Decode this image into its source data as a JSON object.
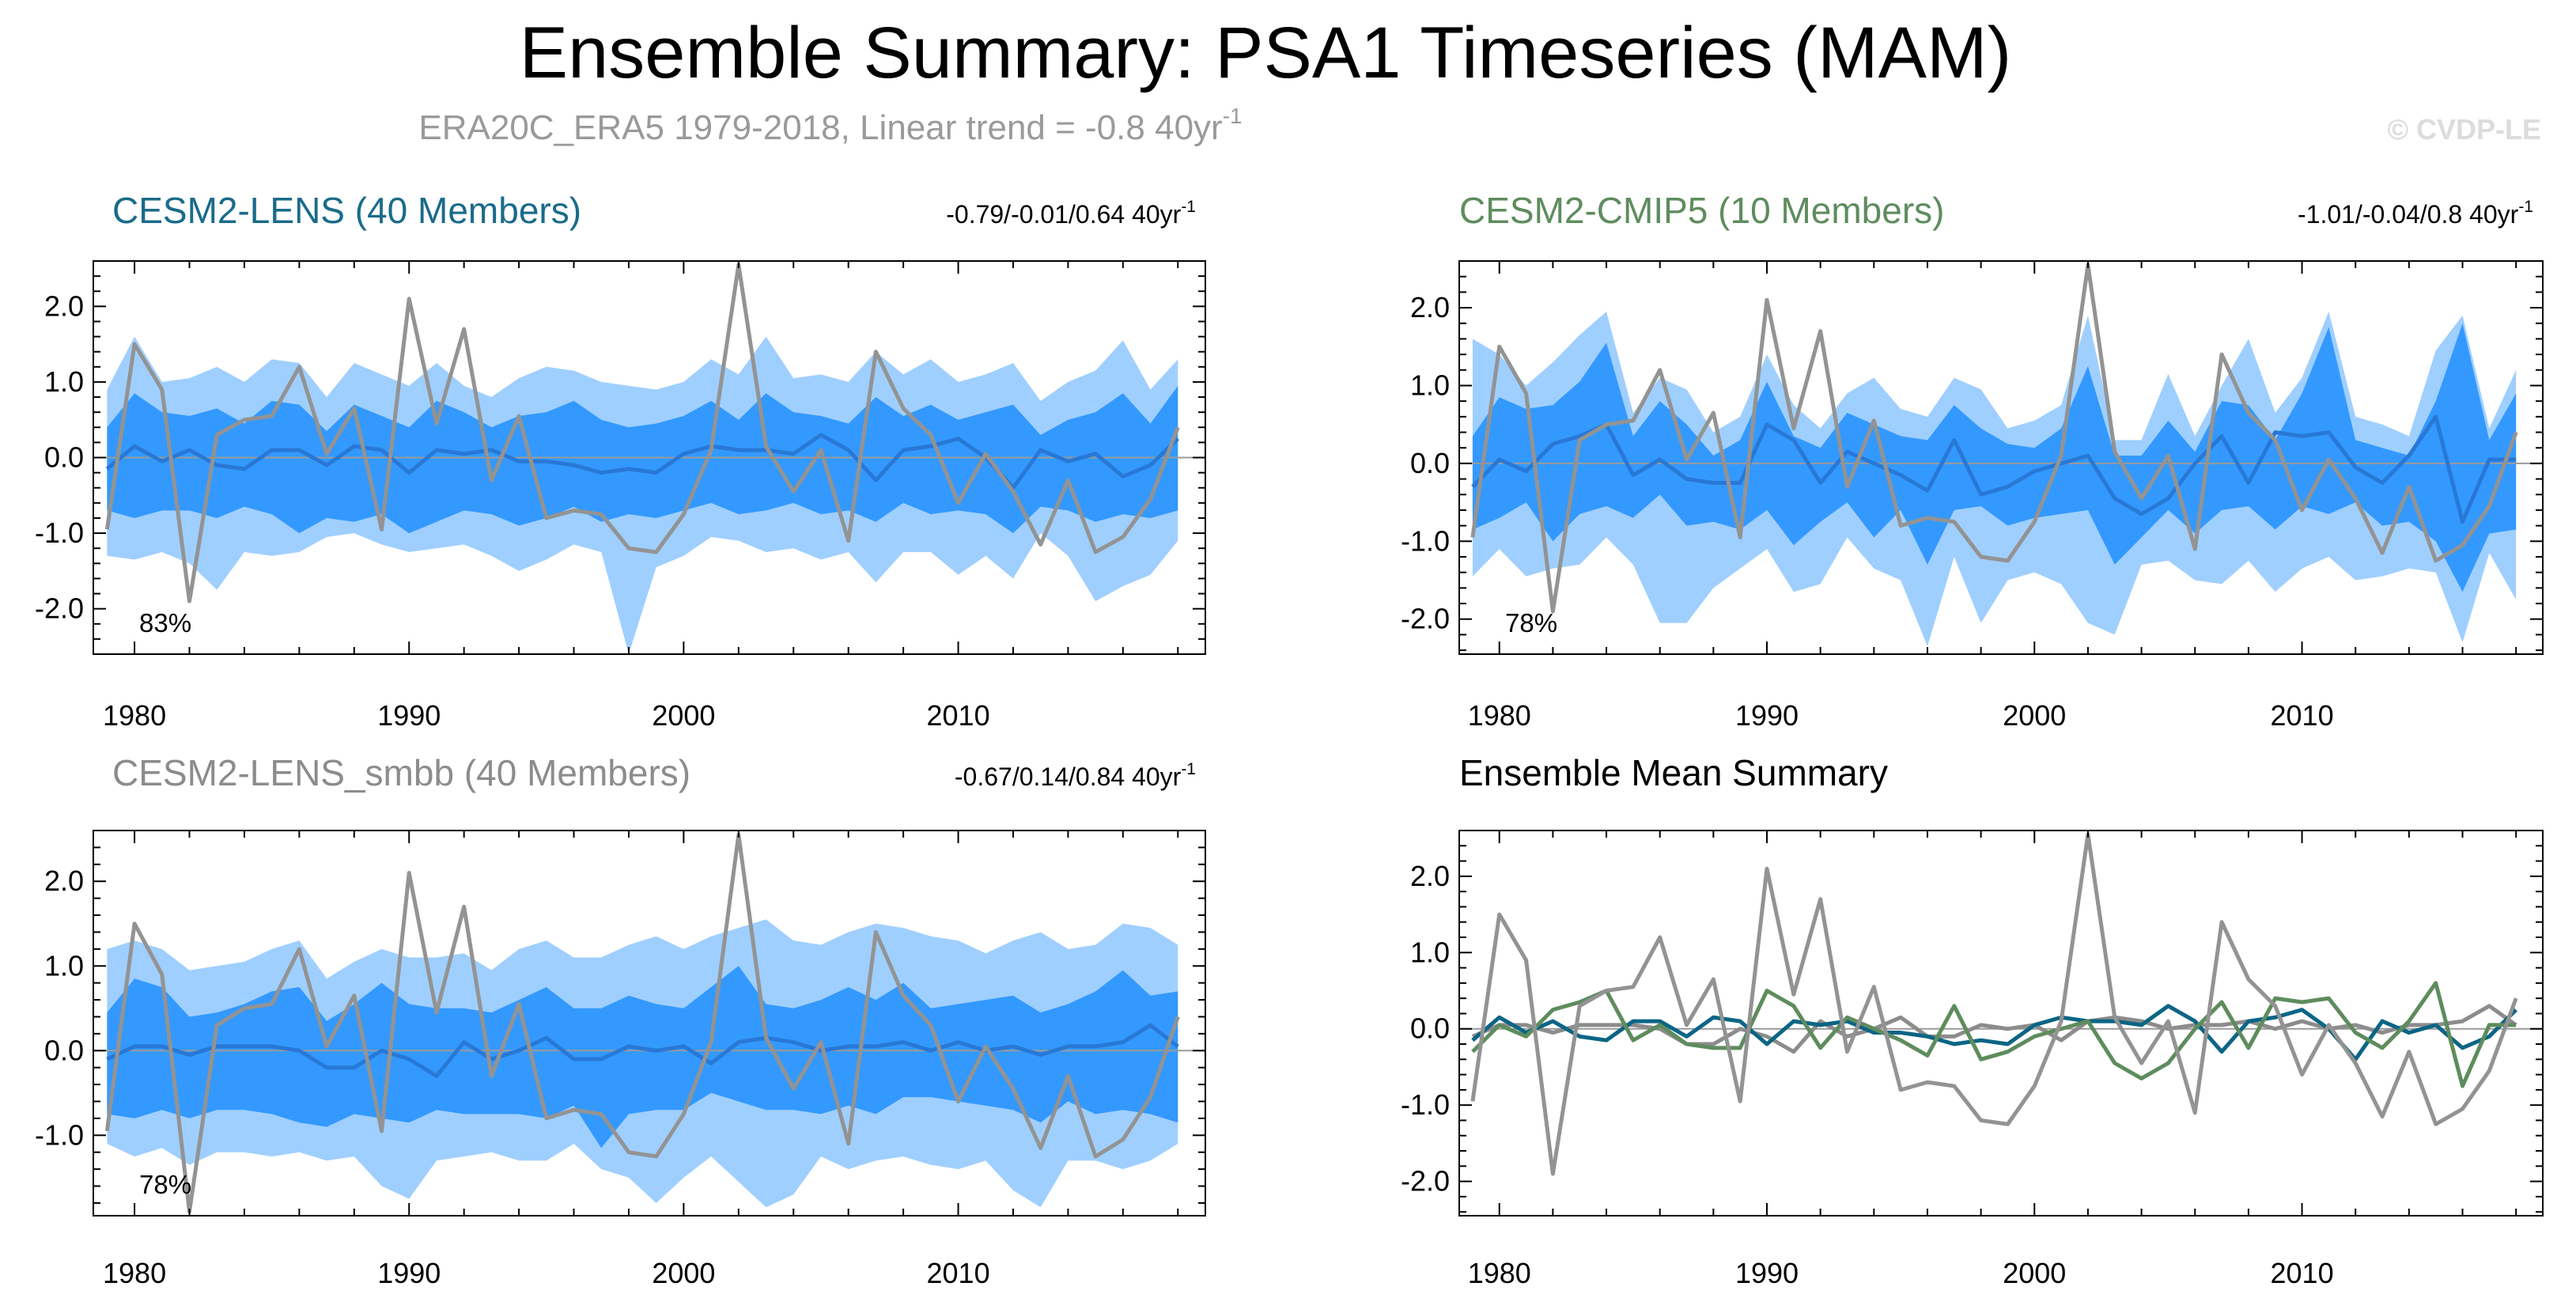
{
  "title": "Ensemble Summary: PSA1 Timeseries (MAM)",
  "subtitle": "ERA20C_ERA5 1979-2018, Linear trend = -0.8 40yr",
  "subtitle_superscript": "-1",
  "watermark": "© CVDP-LE",
  "colors": {
    "inner_band": "#3399ff",
    "outer_band": "#9fcfff",
    "ensemble_median": "#2878d6",
    "observations": "#939393",
    "cesm2_lens": "#0b6584",
    "cesm2_cmip5": "#5e8c5e",
    "cesm2_lens_smbb": "#8c8c8c"
  },
  "chart_data": [
    {
      "type": "line",
      "title": "CESM2-LENS (40 Members)",
      "title_color": "#1a6b8a",
      "trend_text": "-0.79/-0.01/0.64 40yr",
      "trend_superscript": "-1",
      "percent_label": "83%",
      "xlim": [
        1978.5,
        2019
      ],
      "ylim": [
        -2.6,
        2.6
      ],
      "x_ticks": [
        1980,
        1990,
        2000,
        2010
      ],
      "x_tick_labels": [
        "1980",
        "1990",
        "2000",
        "2010"
      ],
      "y_ticks": [
        -2.0,
        -1.0,
        0.0,
        1.0,
        2.0
      ],
      "y_tick_labels": [
        "-2.0",
        "-1.0",
        "0.0",
        "1.0",
        "2.0"
      ],
      "start_year": 1979,
      "bands": {
        "outer_upper": [
          0.9,
          1.6,
          1.0,
          1.05,
          1.2,
          1.0,
          1.3,
          1.25,
          0.8,
          1.25,
          1.1,
          0.95,
          1.25,
          0.95,
          0.8,
          1.05,
          1.2,
          1.15,
          1.0,
          0.95,
          0.9,
          1.0,
          1.3,
          1.1,
          1.6,
          1.05,
          1.1,
          1.0,
          1.4,
          1.1,
          1.3,
          1.0,
          1.1,
          1.25,
          0.75,
          1.0,
          1.15,
          1.55,
          0.9,
          1.3
        ],
        "inner_upper": [
          0.4,
          0.85,
          0.6,
          0.55,
          0.65,
          0.45,
          0.75,
          0.7,
          0.35,
          0.7,
          0.55,
          0.4,
          0.75,
          0.6,
          0.4,
          0.55,
          0.6,
          0.75,
          0.5,
          0.4,
          0.45,
          0.55,
          0.75,
          0.5,
          0.85,
          0.6,
          0.55,
          0.45,
          0.8,
          0.55,
          0.7,
          0.5,
          0.6,
          0.7,
          0.3,
          0.5,
          0.6,
          0.85,
          0.45,
          0.95
        ],
        "inner_lower": [
          -0.7,
          -0.8,
          -0.7,
          -0.7,
          -0.8,
          -0.65,
          -0.75,
          -1.0,
          -0.8,
          -0.85,
          -0.75,
          -1.0,
          -0.85,
          -0.7,
          -0.75,
          -0.9,
          -0.8,
          -0.65,
          -0.85,
          -0.75,
          -0.8,
          -0.7,
          -0.6,
          -0.75,
          -0.7,
          -0.6,
          -0.75,
          -0.7,
          -0.85,
          -0.6,
          -0.75,
          -0.7,
          -0.75,
          -1.0,
          -0.65,
          -0.7,
          -0.85,
          -0.75,
          -0.8,
          -0.7
        ],
        "outer_lower": [
          -1.3,
          -1.35,
          -1.25,
          -1.4,
          -1.75,
          -1.25,
          -1.3,
          -1.25,
          -1.05,
          -1.0,
          -1.15,
          -1.25,
          -1.2,
          -1.15,
          -1.3,
          -1.5,
          -1.35,
          -1.15,
          -1.25,
          -2.6,
          -1.45,
          -1.3,
          -1.05,
          -1.1,
          -1.25,
          -1.2,
          -1.35,
          -1.25,
          -1.65,
          -1.25,
          -1.25,
          -1.55,
          -1.3,
          -1.6,
          -1.0,
          -1.3,
          -1.9,
          -1.7,
          -1.55,
          -1.1
        ]
      },
      "ensemble_median": [
        -0.15,
        0.15,
        -0.05,
        0.1,
        -0.1,
        -0.15,
        0.1,
        0.1,
        -0.1,
        0.15,
        0.1,
        -0.2,
        0.1,
        0.05,
        0.1,
        -0.05,
        -0.05,
        -0.1,
        -0.2,
        -0.15,
        -0.2,
        0.05,
        0.15,
        0.1,
        0.1,
        0.05,
        0.3,
        0.1,
        -0.3,
        0.1,
        0.15,
        0.25,
        0.0,
        -0.4,
        0.1,
        -0.05,
        0.05,
        -0.25,
        -0.1,
        0.25
      ],
      "observations": [
        -0.95,
        1.5,
        0.9,
        -1.9,
        0.3,
        0.5,
        0.55,
        1.2,
        0.05,
        0.65,
        -0.95,
        2.1,
        0.45,
        1.7,
        -0.3,
        0.55,
        -0.8,
        -0.7,
        -0.75,
        -1.2,
        -1.25,
        -0.75,
        0.1,
        2.55,
        0.15,
        -0.45,
        0.1,
        -1.1,
        1.4,
        0.65,
        0.3,
        -0.6,
        0.05,
        -0.45,
        -1.15,
        -0.3,
        -1.25,
        -1.05,
        -0.55,
        0.4
      ]
    },
    {
      "type": "line",
      "title": "CESM2-CMIP5 (10 Members)",
      "title_color": "#5e8c5e",
      "trend_text": "-1.01/-0.04/0.8 40yr",
      "trend_superscript": "-1",
      "percent_label": "78%",
      "xlim": [
        1978.5,
        2019
      ],
      "ylim": [
        -2.45,
        2.6
      ],
      "x_ticks": [
        1980,
        1990,
        2000,
        2010
      ],
      "x_tick_labels": [
        "1980",
        "1990",
        "2000",
        "2010"
      ],
      "y_ticks": [
        -2.0,
        -1.0,
        0.0,
        1.0,
        2.0
      ],
      "y_tick_labels": [
        "-2.0",
        "-1.0",
        "0.0",
        "1.0",
        "2.0"
      ],
      "start_year": 1979,
      "bands": {
        "outer_upper": [
          1.6,
          1.4,
          1.0,
          1.3,
          1.65,
          1.95,
          0.65,
          1.1,
          0.95,
          0.4,
          0.6,
          1.4,
          0.75,
          0.45,
          0.9,
          1.1,
          0.7,
          0.6,
          1.1,
          0.95,
          0.45,
          0.55,
          0.75,
          1.9,
          0.3,
          0.3,
          1.15,
          0.35,
          1.0,
          1.6,
          0.65,
          1.1,
          1.95,
          0.6,
          0.5,
          0.35,
          1.45,
          1.9,
          0.45,
          1.2
        ],
        "inner_upper": [
          0.35,
          0.85,
          0.7,
          0.75,
          1.05,
          1.55,
          0.35,
          0.8,
          0.5,
          0.1,
          0.3,
          1.05,
          0.35,
          0.2,
          0.65,
          0.5,
          0.35,
          0.3,
          0.75,
          0.45,
          0.25,
          0.2,
          0.45,
          1.25,
          0.1,
          0.1,
          0.55,
          0.15,
          0.8,
          0.75,
          0.3,
          0.9,
          1.75,
          0.3,
          0.2,
          0.1,
          0.8,
          1.8,
          0.3,
          0.9
        ],
        "inner_lower": [
          -0.85,
          -0.7,
          -0.5,
          -1.0,
          -0.65,
          -0.55,
          -0.7,
          -0.4,
          -0.8,
          -0.75,
          -0.85,
          -0.6,
          -1.05,
          -0.75,
          -0.5,
          -0.95,
          -0.6,
          -1.3,
          -0.6,
          -0.55,
          -0.8,
          -0.7,
          -0.65,
          -0.6,
          -1.3,
          -0.95,
          -0.6,
          -0.9,
          -0.6,
          -0.55,
          -0.85,
          -0.55,
          -0.65,
          -0.5,
          -0.8,
          -0.75,
          -1.0,
          -1.65,
          -0.9,
          -0.85
        ],
        "outer_lower": [
          -1.45,
          -1.1,
          -1.45,
          -1.35,
          -1.3,
          -0.95,
          -1.3,
          -2.05,
          -2.05,
          -1.6,
          -1.35,
          -1.1,
          -1.65,
          -1.55,
          -0.95,
          -1.35,
          -1.5,
          -2.35,
          -1.2,
          -2.05,
          -1.5,
          -1.4,
          -1.55,
          -2.05,
          -2.2,
          -1.3,
          -1.25,
          -1.5,
          -1.55,
          -1.25,
          -1.65,
          -1.35,
          -1.2,
          -1.5,
          -1.45,
          -1.35,
          -1.4,
          -2.3,
          -1.15,
          -1.75
        ]
      },
      "ensemble_median": [
        -0.3,
        0.05,
        -0.1,
        0.25,
        0.35,
        0.5,
        -0.15,
        0.05,
        -0.2,
        -0.25,
        -0.25,
        0.5,
        0.3,
        -0.25,
        0.15,
        0.0,
        -0.15,
        -0.35,
        0.3,
        -0.4,
        -0.3,
        -0.1,
        0.0,
        0.1,
        -0.45,
        -0.65,
        -0.45,
        0.0,
        0.35,
        -0.25,
        0.4,
        0.35,
        0.4,
        -0.05,
        -0.25,
        0.1,
        0.6,
        -0.75,
        0.05,
        0.05
      ],
      "observations": [
        -0.95,
        1.5,
        0.9,
        -1.9,
        0.3,
        0.5,
        0.55,
        1.2,
        0.05,
        0.65,
        -0.95,
        2.1,
        0.45,
        1.7,
        -0.3,
        0.55,
        -0.8,
        -0.7,
        -0.75,
        -1.2,
        -1.25,
        -0.75,
        0.1,
        2.55,
        0.15,
        -0.45,
        0.1,
        -1.1,
        1.4,
        0.65,
        0.3,
        -0.6,
        0.05,
        -0.45,
        -1.15,
        -0.3,
        -1.25,
        -1.05,
        -0.55,
        0.4
      ]
    },
    {
      "type": "line",
      "title": "CESM2-LENS_smbb (40 Members)",
      "title_color": "#8c8c8c",
      "trend_text": "-0.67/0.14/0.84 40yr",
      "trend_superscript": "-1",
      "percent_label": "78%",
      "xlim": [
        1978.5,
        2019
      ],
      "ylim": [
        -1.95,
        2.6
      ],
      "x_ticks": [
        1980,
        1990,
        2000,
        2010
      ],
      "x_tick_labels": [
        "1980",
        "1990",
        "2000",
        "2010"
      ],
      "y_ticks": [
        -1.0,
        0.0,
        1.0,
        2.0
      ],
      "y_tick_labels": [
        "-1.0",
        "0.0",
        "1.0",
        "2.0"
      ],
      "start_year": 1979,
      "bands": {
        "outer_upper": [
          1.2,
          1.3,
          1.2,
          0.95,
          1.0,
          1.05,
          1.2,
          1.3,
          0.85,
          1.05,
          1.2,
          1.1,
          1.1,
          1.15,
          0.95,
          1.2,
          1.3,
          1.1,
          1.1,
          1.25,
          1.35,
          1.2,
          1.35,
          1.45,
          1.55,
          1.3,
          1.25,
          1.4,
          1.5,
          1.45,
          1.35,
          1.3,
          1.15,
          1.3,
          1.4,
          1.2,
          1.25,
          1.5,
          1.45,
          1.25
        ],
        "inner_upper": [
          0.45,
          0.85,
          0.75,
          0.4,
          0.45,
          0.55,
          0.7,
          0.75,
          0.35,
          0.55,
          0.8,
          0.55,
          0.5,
          0.5,
          0.45,
          0.6,
          0.75,
          0.5,
          0.5,
          0.65,
          0.55,
          0.5,
          0.75,
          1.0,
          0.55,
          0.5,
          0.6,
          0.75,
          0.6,
          0.8,
          0.5,
          0.55,
          0.6,
          0.65,
          0.45,
          0.55,
          0.7,
          0.95,
          0.65,
          0.7
        ],
        "inner_lower": [
          -0.75,
          -0.8,
          -0.7,
          -0.8,
          -0.7,
          -0.7,
          -0.75,
          -0.85,
          -0.9,
          -0.75,
          -0.8,
          -0.85,
          -0.7,
          -0.75,
          -0.75,
          -0.75,
          -0.8,
          -0.65,
          -1.15,
          -0.75,
          -0.7,
          -0.7,
          -0.5,
          -0.6,
          -0.7,
          -0.7,
          -0.75,
          -0.65,
          -0.75,
          -0.55,
          -0.55,
          -0.6,
          -0.65,
          -0.7,
          -0.85,
          -0.6,
          -0.75,
          -0.7,
          -0.75,
          -0.85
        ],
        "outer_lower": [
          -1.1,
          -1.25,
          -1.15,
          -1.35,
          -1.2,
          -1.2,
          -1.25,
          -1.2,
          -1.3,
          -1.25,
          -1.6,
          -1.75,
          -1.3,
          -1.25,
          -1.2,
          -1.3,
          -1.3,
          -1.1,
          -1.4,
          -1.5,
          -1.8,
          -1.5,
          -1.25,
          -1.55,
          -1.85,
          -1.7,
          -1.25,
          -1.4,
          -1.3,
          -1.25,
          -1.35,
          -1.4,
          -1.3,
          -1.65,
          -1.85,
          -1.3,
          -1.3,
          -1.4,
          -1.3,
          -1.1
        ]
      },
      "ensemble_median": [
        -0.1,
        0.05,
        0.05,
        -0.05,
        0.05,
        0.05,
        0.05,
        0.0,
        -0.2,
        -0.2,
        0.0,
        -0.1,
        -0.3,
        0.1,
        -0.1,
        0.0,
        0.15,
        -0.1,
        -0.1,
        0.05,
        0.0,
        0.05,
        -0.15,
        0.1,
        0.15,
        0.1,
        0.0,
        0.05,
        0.05,
        0.1,
        0.0,
        0.1,
        0.0,
        0.05,
        -0.05,
        0.05,
        0.05,
        0.1,
        0.3,
        0.05
      ],
      "observations": [
        -0.95,
        1.5,
        0.9,
        -1.9,
        0.3,
        0.5,
        0.55,
        1.2,
        0.05,
        0.65,
        -0.95,
        2.1,
        0.45,
        1.7,
        -0.3,
        0.55,
        -0.8,
        -0.7,
        -0.75,
        -1.2,
        -1.25,
        -0.75,
        0.1,
        2.55,
        0.15,
        -0.45,
        0.1,
        -1.1,
        1.4,
        0.65,
        0.3,
        -0.6,
        0.05,
        -0.45,
        -1.15,
        -0.3,
        -1.25,
        -1.05,
        -0.55,
        0.4
      ]
    },
    {
      "type": "line",
      "title": "Ensemble Mean Summary",
      "title_color": "#000000",
      "xlim": [
        1978.5,
        2019
      ],
      "ylim": [
        -2.45,
        2.6
      ],
      "x_ticks": [
        1980,
        1990,
        2000,
        2010
      ],
      "x_tick_labels": [
        "1980",
        "1990",
        "2000",
        "2010"
      ],
      "y_ticks": [
        -2.0,
        -1.0,
        0.0,
        1.0,
        2.0
      ],
      "y_tick_labels": [
        "-2.0",
        "-1.0",
        "0.0",
        "1.0",
        "2.0"
      ],
      "start_year": 1979,
      "series": [
        {
          "name": "CESM2-LENS_smbb",
          "color": "#8c8c8c",
          "values": [
            -0.1,
            0.05,
            0.05,
            -0.05,
            0.05,
            0.05,
            0.05,
            0.0,
            -0.2,
            -0.2,
            0.0,
            -0.1,
            -0.3,
            0.1,
            -0.1,
            0.0,
            0.15,
            -0.1,
            -0.1,
            0.05,
            0.0,
            0.05,
            -0.15,
            0.1,
            0.15,
            0.1,
            0.0,
            0.05,
            0.05,
            0.1,
            0.0,
            0.1,
            0.0,
            0.05,
            -0.05,
            0.05,
            0.05,
            0.1,
            0.3,
            0.05
          ]
        },
        {
          "name": "CESM2-LENS",
          "color": "#0b6584",
          "values": [
            -0.15,
            0.15,
            -0.05,
            0.1,
            -0.1,
            -0.15,
            0.1,
            0.1,
            -0.1,
            0.15,
            0.1,
            -0.2,
            0.1,
            0.05,
            0.1,
            -0.05,
            -0.05,
            -0.1,
            -0.2,
            -0.15,
            -0.2,
            0.05,
            0.15,
            0.1,
            0.1,
            0.05,
            0.3,
            0.1,
            -0.3,
            0.1,
            0.15,
            0.25,
            0.0,
            -0.4,
            0.1,
            -0.05,
            0.05,
            -0.25,
            -0.1,
            0.25
          ]
        },
        {
          "name": "CESM2-CMIP5",
          "color": "#5e8c5e",
          "values": [
            -0.3,
            0.05,
            -0.1,
            0.25,
            0.35,
            0.5,
            -0.15,
            0.05,
            -0.2,
            -0.25,
            -0.25,
            0.5,
            0.3,
            -0.25,
            0.15,
            0.0,
            -0.15,
            -0.35,
            0.3,
            -0.4,
            -0.3,
            -0.1,
            0.0,
            0.1,
            -0.45,
            -0.65,
            -0.45,
            0.0,
            0.35,
            -0.25,
            0.4,
            0.35,
            0.4,
            -0.05,
            -0.25,
            0.1,
            0.6,
            -0.75,
            0.05,
            0.05
          ]
        },
        {
          "name": "ERA20C_ERA5",
          "color": "#939393",
          "values": [
            -0.95,
            1.5,
            0.9,
            -1.9,
            0.3,
            0.5,
            0.55,
            1.2,
            0.05,
            0.65,
            -0.95,
            2.1,
            0.45,
            1.7,
            -0.3,
            0.55,
            -0.8,
            -0.7,
            -0.75,
            -1.2,
            -1.25,
            -0.75,
            0.1,
            2.55,
            0.15,
            -0.45,
            0.1,
            -1.1,
            1.4,
            0.65,
            0.3,
            -0.6,
            0.05,
            -0.45,
            -1.15,
            -0.3,
            -1.25,
            -1.05,
            -0.55,
            0.4
          ]
        }
      ]
    }
  ]
}
